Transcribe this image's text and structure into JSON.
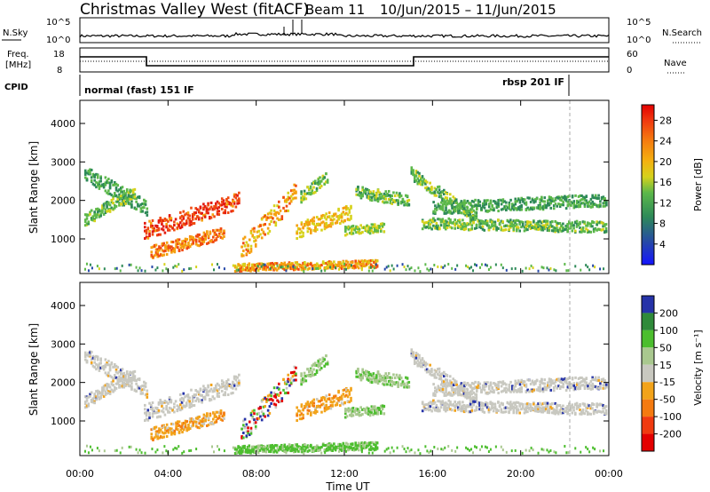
{
  "header": {
    "station": "Christmas Valley West (fitACF)",
    "beam": "Beam 11",
    "date_range": "10/Jun/2015 – 11/Jun/2015"
  },
  "panels": {
    "nsky": {
      "label": "N.Sky",
      "tick_top": "10^5",
      "tick_bottom": "10^0",
      "right_label": "N.Search",
      "right_tick_top": "10^5",
      "right_tick_bottom": "10^0"
    },
    "freq": {
      "label": "Freq.",
      "unit": "[MHz]",
      "tick_top": "18",
      "tick_bottom": "8",
      "right_label": "Nave",
      "right_tick_top": "60",
      "right_tick_bottom": "0"
    },
    "cpid": {
      "label": "CPID",
      "mode_1": "normal (fast) 151 IF",
      "mode_2": "rbsp 201 IF"
    }
  },
  "chart_data": [
    {
      "type": "heatmap",
      "title": "",
      "ylabel": "Slant Range [km]",
      "yticks": [
        "1000",
        "2000",
        "3000",
        "4000"
      ],
      "ylim": [
        100,
        4600
      ],
      "colorbar": {
        "label": "Power [dB]",
        "ticks": [
          "4",
          "8",
          "12",
          "16",
          "20",
          "24",
          "28"
        ],
        "range": [
          0,
          31
        ]
      }
    },
    {
      "type": "heatmap",
      "title": "",
      "ylabel": "Slant Range [km]",
      "yticks": [
        "1000",
        "2000",
        "3000",
        "4000"
      ],
      "ylim": [
        100,
        4600
      ],
      "xlabel": "Time UT",
      "xticks": [
        "00:00",
        "04:00",
        "08:00",
        "12:00",
        "16:00",
        "20:00",
        "00:00"
      ],
      "colorbar": {
        "label": "Velocity [m s⁻¹]",
        "ticks": [
          "200",
          "100",
          "50",
          "15",
          "-15",
          "-50",
          "-100",
          "-200"
        ]
      }
    }
  ]
}
